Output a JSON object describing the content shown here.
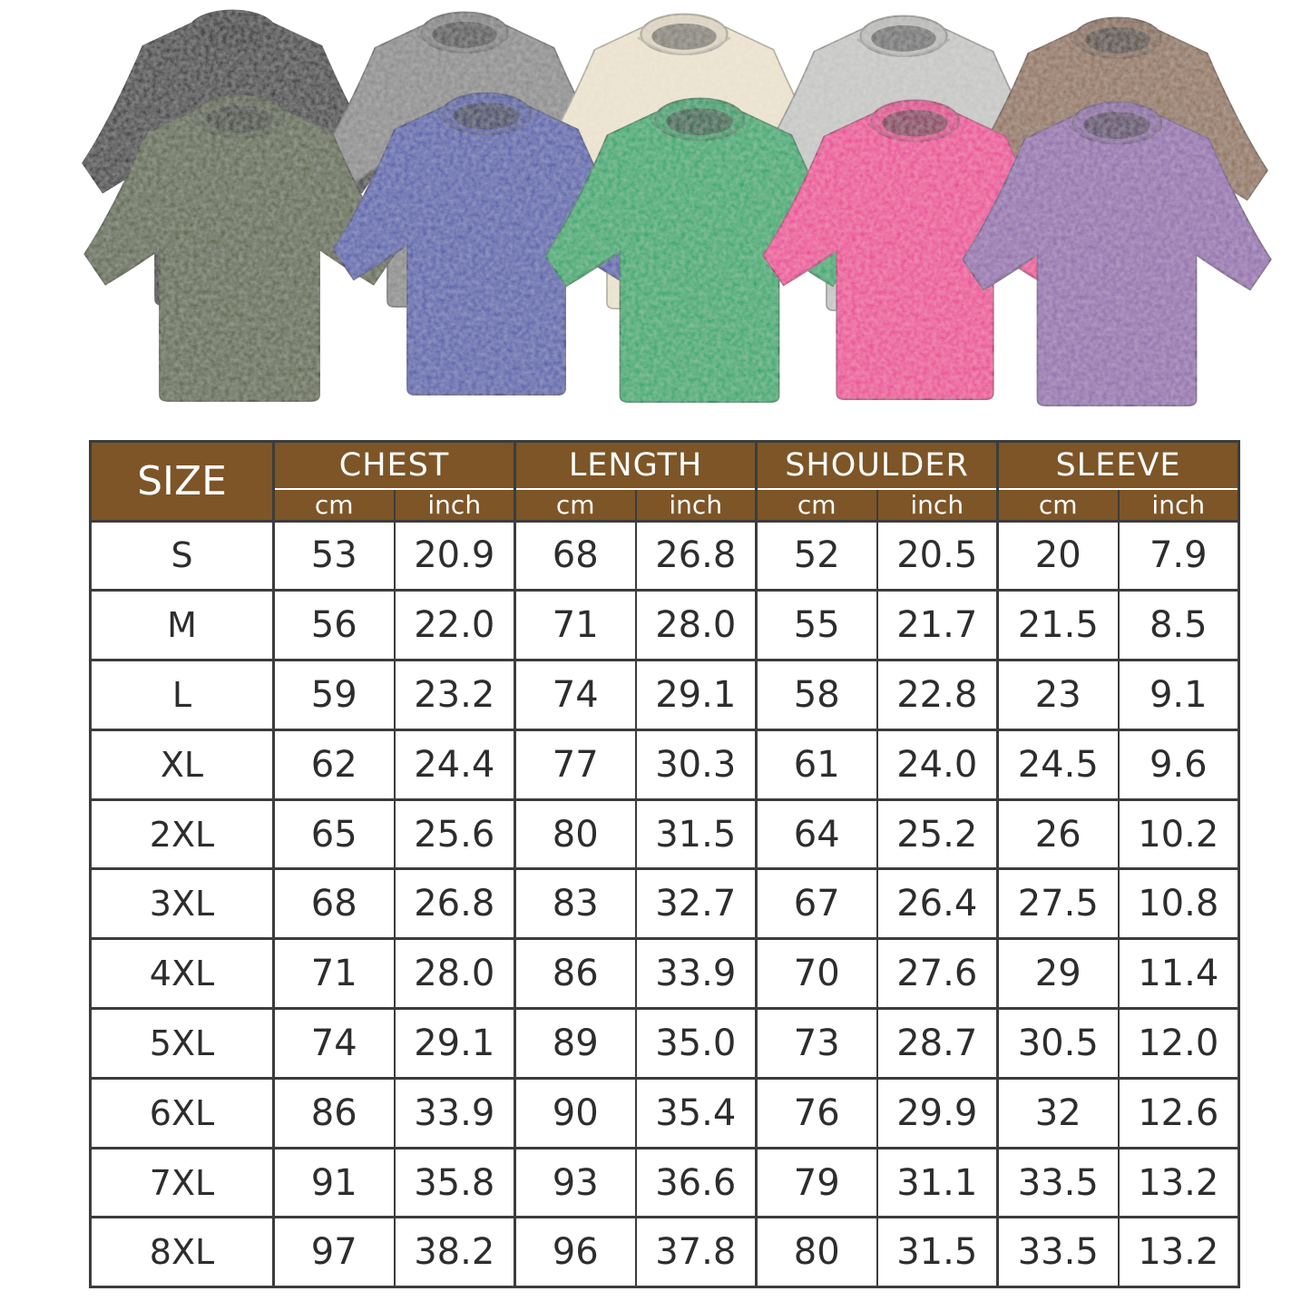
{
  "shirts": [
    {
      "name": "black",
      "color": "#2b2b2b"
    },
    {
      "name": "dark-gray",
      "color": "#868686"
    },
    {
      "name": "cream",
      "color": "#e9e0ca"
    },
    {
      "name": "light-gray",
      "color": "#c3c3c1"
    },
    {
      "name": "brown",
      "color": "#8d6c53"
    },
    {
      "name": "army-green",
      "color": "#556040"
    },
    {
      "name": "blue",
      "color": "#4d58a8"
    },
    {
      "name": "green",
      "color": "#18a565"
    },
    {
      "name": "hot-pink",
      "color": "#ea3c92"
    },
    {
      "name": "purple",
      "color": "#8f68aa"
    }
  ],
  "colors": {
    "header_bg": "#7d5527",
    "header_text": "#ffffff",
    "table_border": "#3c3c3c",
    "cell_text": "#2d2d2d"
  },
  "size_chart": {
    "header": {
      "size_label": "SIZE",
      "groups": [
        {
          "label": "CHEST"
        },
        {
          "label": "LENGTH"
        },
        {
          "label": "SHOULDER"
        },
        {
          "label": "SLEEVE"
        }
      ],
      "unit_cm": "cm",
      "unit_inch": "inch"
    },
    "rows": [
      {
        "size": "S",
        "chest_cm": "53",
        "chest_in": "20.9",
        "length_cm": "68",
        "length_in": "26.8",
        "shoulder_cm": "52",
        "shoulder_in": "20.5",
        "sleeve_cm": "20",
        "sleeve_in": "7.9"
      },
      {
        "size": "M",
        "chest_cm": "56",
        "chest_in": "22.0",
        "length_cm": "71",
        "length_in": "28.0",
        "shoulder_cm": "55",
        "shoulder_in": "21.7",
        "sleeve_cm": "21.5",
        "sleeve_in": "8.5"
      },
      {
        "size": "L",
        "chest_cm": "59",
        "chest_in": "23.2",
        "length_cm": "74",
        "length_in": "29.1",
        "shoulder_cm": "58",
        "shoulder_in": "22.8",
        "sleeve_cm": "23",
        "sleeve_in": "9.1"
      },
      {
        "size": "XL",
        "chest_cm": "62",
        "chest_in": "24.4",
        "length_cm": "77",
        "length_in": "30.3",
        "shoulder_cm": "61",
        "shoulder_in": "24.0",
        "sleeve_cm": "24.5",
        "sleeve_in": "9.6"
      },
      {
        "size": "2XL",
        "chest_cm": "65",
        "chest_in": "25.6",
        "length_cm": "80",
        "length_in": "31.5",
        "shoulder_cm": "64",
        "shoulder_in": "25.2",
        "sleeve_cm": "26",
        "sleeve_in": "10.2"
      },
      {
        "size": "3XL",
        "chest_cm": "68",
        "chest_in": "26.8",
        "length_cm": "83",
        "length_in": "32.7",
        "shoulder_cm": "67",
        "shoulder_in": "26.4",
        "sleeve_cm": "27.5",
        "sleeve_in": "10.8"
      },
      {
        "size": "4XL",
        "chest_cm": "71",
        "chest_in": "28.0",
        "length_cm": "86",
        "length_in": "33.9",
        "shoulder_cm": "70",
        "shoulder_in": "27.6",
        "sleeve_cm": "29",
        "sleeve_in": "11.4"
      },
      {
        "size": "5XL",
        "chest_cm": "74",
        "chest_in": "29.1",
        "length_cm": "89",
        "length_in": "35.0",
        "shoulder_cm": "73",
        "shoulder_in": "28.7",
        "sleeve_cm": "30.5",
        "sleeve_in": "12.0"
      },
      {
        "size": "6XL",
        "chest_cm": "86",
        "chest_in": "33.9",
        "length_cm": "90",
        "length_in": "35.4",
        "shoulder_cm": "76",
        "shoulder_in": "29.9",
        "sleeve_cm": "32",
        "sleeve_in": "12.6"
      },
      {
        "size": "7XL",
        "chest_cm": "91",
        "chest_in": "35.8",
        "length_cm": "93",
        "length_in": "36.6",
        "shoulder_cm": "79",
        "shoulder_in": "31.1",
        "sleeve_cm": "33.5",
        "sleeve_in": "13.2"
      },
      {
        "size": "8XL",
        "chest_cm": "97",
        "chest_in": "38.2",
        "length_cm": "96",
        "length_in": "37.8",
        "shoulder_cm": "80",
        "shoulder_in": "31.5",
        "sleeve_cm": "33.5",
        "sleeve_in": "13.2"
      }
    ]
  }
}
